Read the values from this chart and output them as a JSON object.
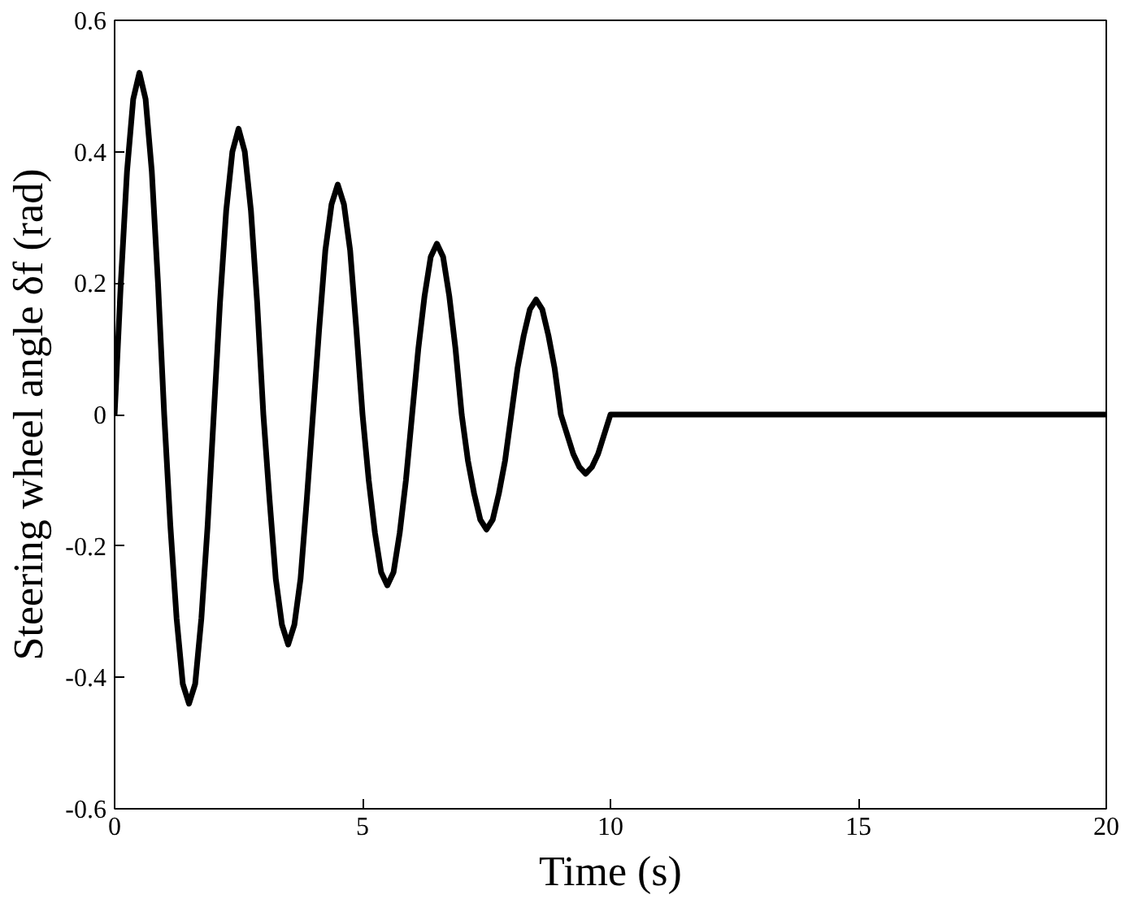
{
  "chart_data": {
    "type": "line",
    "xlabel": "Time (s)",
    "ylabel": "Steering wheel angle δf (rad)",
    "x": [
      0,
      0.125,
      0.25,
      0.375,
      0.5,
      0.625,
      0.75,
      0.875,
      1,
      1.125,
      1.25,
      1.375,
      1.5,
      1.625,
      1.75,
      1.875,
      2,
      2.125,
      2.25,
      2.375,
      2.5,
      2.625,
      2.75,
      2.875,
      3,
      3.125,
      3.25,
      3.375,
      3.5,
      3.625,
      3.75,
      3.875,
      4,
      4.125,
      4.25,
      4.375,
      4.5,
      4.625,
      4.75,
      4.875,
      5,
      5.125,
      5.25,
      5.375,
      5.5,
      5.625,
      5.75,
      5.875,
      6,
      6.125,
      6.25,
      6.375,
      6.5,
      6.625,
      6.75,
      6.875,
      7,
      7.125,
      7.25,
      7.375,
      7.5,
      7.625,
      7.75,
      7.875,
      8,
      8.125,
      8.25,
      8.375,
      8.5,
      8.625,
      8.75,
      8.875,
      9,
      9.125,
      9.25,
      9.375,
      9.5,
      9.625,
      9.75,
      9.875,
      10,
      20
    ],
    "series": [
      {
        "color": "#000000",
        "values": [
          0,
          0.2,
          0.37,
          0.48,
          0.52,
          0.48,
          0.37,
          0.2,
          0,
          -0.17,
          -0.31,
          -0.41,
          -0.44,
          -0.41,
          -0.31,
          -0.17,
          0,
          0.17,
          0.31,
          0.4,
          0.435,
          0.4,
          0.31,
          0.17,
          0,
          -0.13,
          -0.25,
          -0.32,
          -0.35,
          -0.32,
          -0.25,
          -0.13,
          0,
          0.13,
          0.25,
          0.32,
          0.35,
          0.32,
          0.25,
          0.13,
          0,
          -0.1,
          -0.18,
          -0.24,
          -0.26,
          -0.24,
          -0.18,
          -0.1,
          0,
          0.1,
          0.18,
          0.24,
          0.26,
          0.24,
          0.18,
          0.1,
          0,
          -0.07,
          -0.12,
          -0.16,
          -0.175,
          -0.16,
          -0.12,
          -0.07,
          0,
          0.07,
          0.12,
          0.16,
          0.175,
          0.16,
          0.12,
          0.07,
          0,
          -0.03,
          -0.06,
          -0.08,
          -0.09,
          -0.08,
          -0.06,
          -0.03,
          0,
          0
        ]
      }
    ],
    "xlim": [
      0,
      20
    ],
    "ylim": [
      -0.6,
      0.6
    ],
    "xticks": [
      0,
      5,
      10,
      15,
      20
    ],
    "yticks": [
      -0.6,
      -0.4,
      -0.2,
      0,
      0.2,
      0.4,
      0.6
    ],
    "grid": false,
    "marker": "none",
    "line_style": "solid"
  }
}
